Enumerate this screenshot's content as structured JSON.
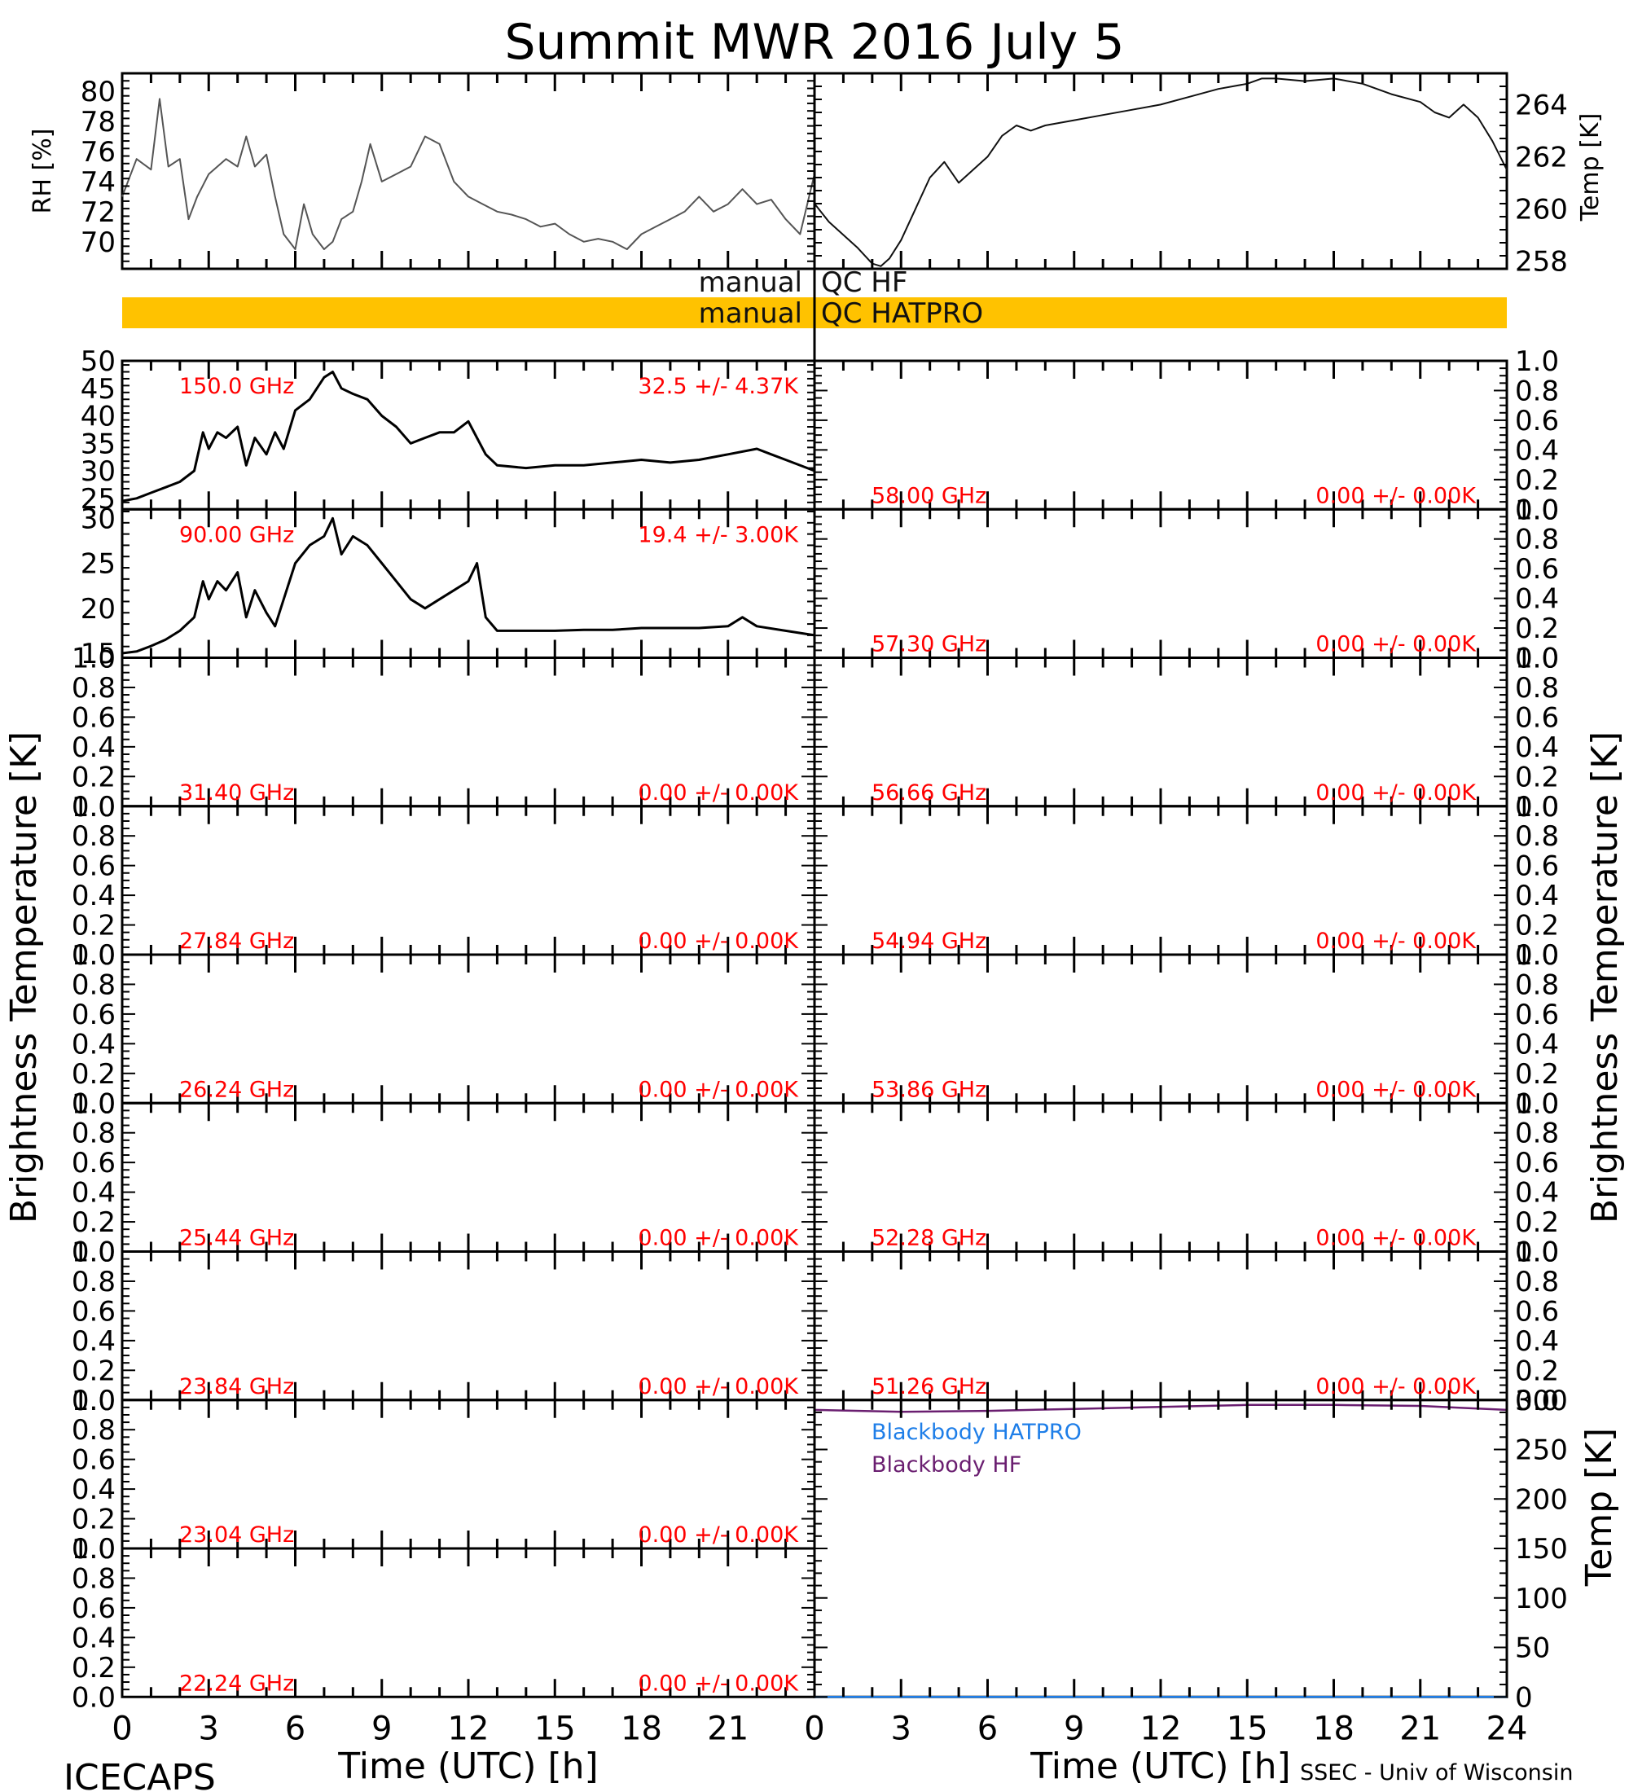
{
  "title": "Summit MWR 2016 July  5",
  "footer_left": "ICECAPS",
  "footer_right": "SSEC - Univ of Wisconsin",
  "xlabel": "Time (UTC) [h]",
  "colors": {
    "axis": "#000000",
    "label_red": "#ff0000",
    "qc_bar": "#ffc200",
    "hatpro": "#1e7ee8",
    "hf": "#6a1e70"
  },
  "qc": {
    "hf_label": "manual QC HF",
    "hatpro_label": "manual QC HATPRO",
    "hf_left": "manual",
    "hf_right": "QC HF",
    "hatpro_left": "manual",
    "hatpro_right": "QC HATPRO"
  },
  "chart_data": [
    {
      "id": "rh_temp",
      "type": "line",
      "x_ticks": [
        0,
        3,
        6,
        9,
        12,
        15,
        18,
        21,
        24
      ],
      "left": {
        "ylabel": "RH [%]",
        "ylim": [
          68.2,
          81.2
        ],
        "ticks": [
          70,
          72,
          74,
          76,
          78,
          80
        ],
        "x": [
          0,
          0.5,
          1,
          1.3,
          1.6,
          2,
          2.3,
          2.6,
          3,
          3.3,
          3.6,
          4,
          4.3,
          4.6,
          5,
          5.3,
          5.6,
          6,
          6.3,
          6.6,
          7,
          7.3,
          7.6,
          8,
          8.3,
          8.6,
          9,
          9.5,
          10,
          10.5,
          11,
          11.5,
          12,
          12.5,
          13,
          13.5,
          14,
          14.5,
          15,
          15.5,
          16,
          16.5,
          17,
          17.5,
          18,
          18.5,
          19,
          19.5,
          20,
          20.5,
          21,
          21.5,
          22,
          22.5,
          23,
          23.5,
          24
        ],
        "y": [
          73,
          75.5,
          74.8,
          79.5,
          75,
          75.5,
          71.5,
          73,
          74.5,
          75,
          75.5,
          75,
          77,
          75,
          75.8,
          73,
          70.5,
          69.5,
          72.5,
          70.5,
          69.5,
          70,
          71.5,
          72,
          74,
          76.5,
          74,
          74.5,
          75,
          77,
          76.5,
          74,
          73,
          72.5,
          72,
          71.8,
          71.5,
          71,
          71.2,
          70.5,
          70,
          70.2,
          70,
          69.5,
          70.5,
          71,
          71.5,
          72,
          73,
          72,
          72.5,
          73.5,
          72.5,
          72.8,
          71.5,
          70.5,
          74.5
        ]
      },
      "right": {
        "ylabel": "Temp [K]",
        "ylim": [
          257.7,
          265.2
        ],
        "ticks": [
          258,
          260,
          262,
          264
        ],
        "x": [
          0,
          0.5,
          1,
          1.5,
          2,
          2.3,
          2.6,
          3,
          3.5,
          4,
          4.5,
          5,
          5.5,
          6,
          6.5,
          7,
          7.5,
          8,
          9,
          10,
          11,
          12,
          13,
          14,
          15,
          15.5,
          16,
          17,
          18,
          19,
          20,
          21,
          21.5,
          22,
          22.5,
          23,
          23.5,
          24
        ],
        "y": [
          260.2,
          259.5,
          259.0,
          258.5,
          257.9,
          257.8,
          258.1,
          258.8,
          260.0,
          261.2,
          261.8,
          261.0,
          261.5,
          262.0,
          262.8,
          263.2,
          263.0,
          263.2,
          263.4,
          263.6,
          263.8,
          264.0,
          264.3,
          264.6,
          264.8,
          265.0,
          265.0,
          264.9,
          265.0,
          264.8,
          264.4,
          264.1,
          263.7,
          263.5,
          264.0,
          263.5,
          262.6,
          261.5
        ]
      }
    },
    {
      "id": "left_panels",
      "type": "line",
      "ylabel": "Brightness Temperature [K]",
      "x_ticks": [
        0,
        3,
        6,
        9,
        12,
        15,
        18,
        21
      ],
      "panels": [
        {
          "freq": "150.0 GHz",
          "stat": "32.5 +/-  4.37K",
          "ylim": [
            23,
            50
          ],
          "ticks": [
            25,
            30,
            35,
            40,
            45,
            50
          ],
          "x": [
            0,
            0.5,
            1,
            1.5,
            2,
            2.5,
            2.8,
            3,
            3.3,
            3.6,
            4,
            4.3,
            4.6,
            5,
            5.3,
            5.6,
            6,
            6.5,
            7,
            7.3,
            7.6,
            8,
            8.5,
            9,
            9.5,
            10,
            10.5,
            11,
            11.5,
            12,
            12.3,
            12.6,
            13,
            14,
            15,
            16,
            17,
            18,
            19,
            20,
            21,
            22,
            22.5,
            23,
            24
          ],
          "y": [
            24.5,
            25,
            26,
            27,
            28,
            30,
            37,
            34,
            37,
            36,
            38,
            31,
            36,
            33,
            37,
            34,
            41,
            43,
            47,
            48,
            45,
            44,
            43,
            40,
            38,
            35,
            36,
            37,
            37,
            39,
            36,
            33,
            31,
            30.5,
            31,
            31,
            31.5,
            32,
            31.5,
            32,
            33,
            34,
            33,
            32,
            30
          ]
        },
        {
          "freq": "90.00 GHz",
          "stat": "19.4 +/-  3.00K",
          "ylim": [
            14.5,
            31
          ],
          "ticks": [
            15,
            20,
            25,
            30
          ],
          "x": [
            0,
            0.5,
            1,
            1.5,
            2,
            2.5,
            2.8,
            3,
            3.3,
            3.6,
            4,
            4.3,
            4.6,
            5,
            5.3,
            5.6,
            6,
            6.5,
            7,
            7.3,
            7.6,
            8,
            8.5,
            9,
            9.5,
            10,
            10.5,
            11,
            11.5,
            12,
            12.3,
            12.6,
            13,
            14,
            15,
            16,
            17,
            18,
            19,
            20,
            21,
            21.5,
            22,
            23,
            24
          ],
          "y": [
            15,
            15.2,
            15.8,
            16.5,
            17.5,
            19,
            23,
            21,
            23,
            22,
            24,
            19,
            22,
            19.5,
            18,
            21,
            25,
            27,
            28,
            30,
            26,
            28,
            27,
            25,
            23,
            21,
            20,
            21,
            22,
            23,
            25,
            19,
            17.5,
            17.5,
            17.5,
            17.6,
            17.6,
            17.8,
            17.8,
            17.8,
            18,
            19,
            18,
            17.5,
            17
          ]
        },
        {
          "freq": "31.40 GHz",
          "stat": "0.00 +/-  0.00K",
          "ylim": [
            0,
            1
          ],
          "ticks": [
            0,
            0.2,
            0.4,
            0.6,
            0.8,
            1.0
          ]
        },
        {
          "freq": "27.84 GHz",
          "stat": "0.00 +/-  0.00K",
          "ylim": [
            0,
            1
          ],
          "ticks": [
            0,
            0.2,
            0.4,
            0.6,
            0.8,
            1.0
          ]
        },
        {
          "freq": "26.24 GHz",
          "stat": "0.00 +/-  0.00K",
          "ylim": [
            0,
            1
          ],
          "ticks": [
            0,
            0.2,
            0.4,
            0.6,
            0.8,
            1.0
          ]
        },
        {
          "freq": "25.44 GHz",
          "stat": "0.00 +/-  0.00K",
          "ylim": [
            0,
            1
          ],
          "ticks": [
            0,
            0.2,
            0.4,
            0.6,
            0.8,
            1.0
          ]
        },
        {
          "freq": "23.84 GHz",
          "stat": "0.00 +/-  0.00K",
          "ylim": [
            0,
            1
          ],
          "ticks": [
            0,
            0.2,
            0.4,
            0.6,
            0.8,
            1.0
          ]
        },
        {
          "freq": "23.04 GHz",
          "stat": "0.00 +/-  0.00K",
          "ylim": [
            0,
            1
          ],
          "ticks": [
            0,
            0.2,
            0.4,
            0.6,
            0.8,
            1.0
          ]
        },
        {
          "freq": "22.24 GHz",
          "stat": "0.00 +/-  0.00K",
          "ylim": [
            0,
            1
          ],
          "ticks": [
            0,
            0.2,
            0.4,
            0.6,
            0.8,
            1.0
          ]
        }
      ]
    },
    {
      "id": "right_panels",
      "type": "line",
      "ylabel": "Brightness Temperature [K]",
      "x_ticks": [
        0,
        3,
        6,
        9,
        12,
        15,
        18,
        21,
        24
      ],
      "panels": [
        {
          "freq": "58.00 GHz",
          "stat": "0.00 +/-  0.00K",
          "ylim": [
            0,
            1
          ],
          "ticks": [
            0,
            0.2,
            0.4,
            0.6,
            0.8,
            1.0
          ]
        },
        {
          "freq": "57.30 GHz",
          "stat": "0.00 +/-  0.00K",
          "ylim": [
            0,
            1
          ],
          "ticks": [
            0,
            0.2,
            0.4,
            0.6,
            0.8,
            1.0
          ]
        },
        {
          "freq": "56.66 GHz",
          "stat": "0.00 +/-  0.00K",
          "ylim": [
            0,
            1
          ],
          "ticks": [
            0,
            0.2,
            0.4,
            0.6,
            0.8,
            1.0
          ]
        },
        {
          "freq": "54.94 GHz",
          "stat": "0.00 +/-  0.00K",
          "ylim": [
            0,
            1
          ],
          "ticks": [
            0,
            0.2,
            0.4,
            0.6,
            0.8,
            1.0
          ]
        },
        {
          "freq": "53.86 GHz",
          "stat": "0.00 +/-  0.00K",
          "ylim": [
            0,
            1
          ],
          "ticks": [
            0,
            0.2,
            0.4,
            0.6,
            0.8,
            1.0
          ]
        },
        {
          "freq": "52.28 GHz",
          "stat": "0.00 +/-  0.00K",
          "ylim": [
            0,
            1
          ],
          "ticks": [
            0,
            0.2,
            0.4,
            0.6,
            0.8,
            1.0
          ]
        },
        {
          "freq": "51.26 GHz",
          "stat": "0.00 +/-  0.00K",
          "ylim": [
            0,
            1
          ],
          "ticks": [
            0,
            0.2,
            0.4,
            0.6,
            0.8,
            1.0
          ]
        }
      ]
    },
    {
      "id": "blackbody",
      "type": "line",
      "ylabel": "Temp [K]",
      "ylim": [
        0,
        300
      ],
      "ticks": [
        0,
        50,
        100,
        150,
        200,
        250,
        300
      ],
      "x_ticks": [
        0,
        3,
        6,
        9,
        12,
        15,
        18,
        21,
        24
      ],
      "series": [
        {
          "name": "Blackbody HATPRO",
          "x": [
            0,
            24
          ],
          "y": [
            0,
            0
          ]
        },
        {
          "name": "Blackbody HF",
          "x": [
            0,
            3,
            6,
            9,
            12,
            15,
            16,
            18,
            21,
            24
          ],
          "y": [
            290,
            288,
            289,
            291,
            293,
            295,
            295,
            295,
            294,
            290
          ]
        }
      ]
    }
  ]
}
